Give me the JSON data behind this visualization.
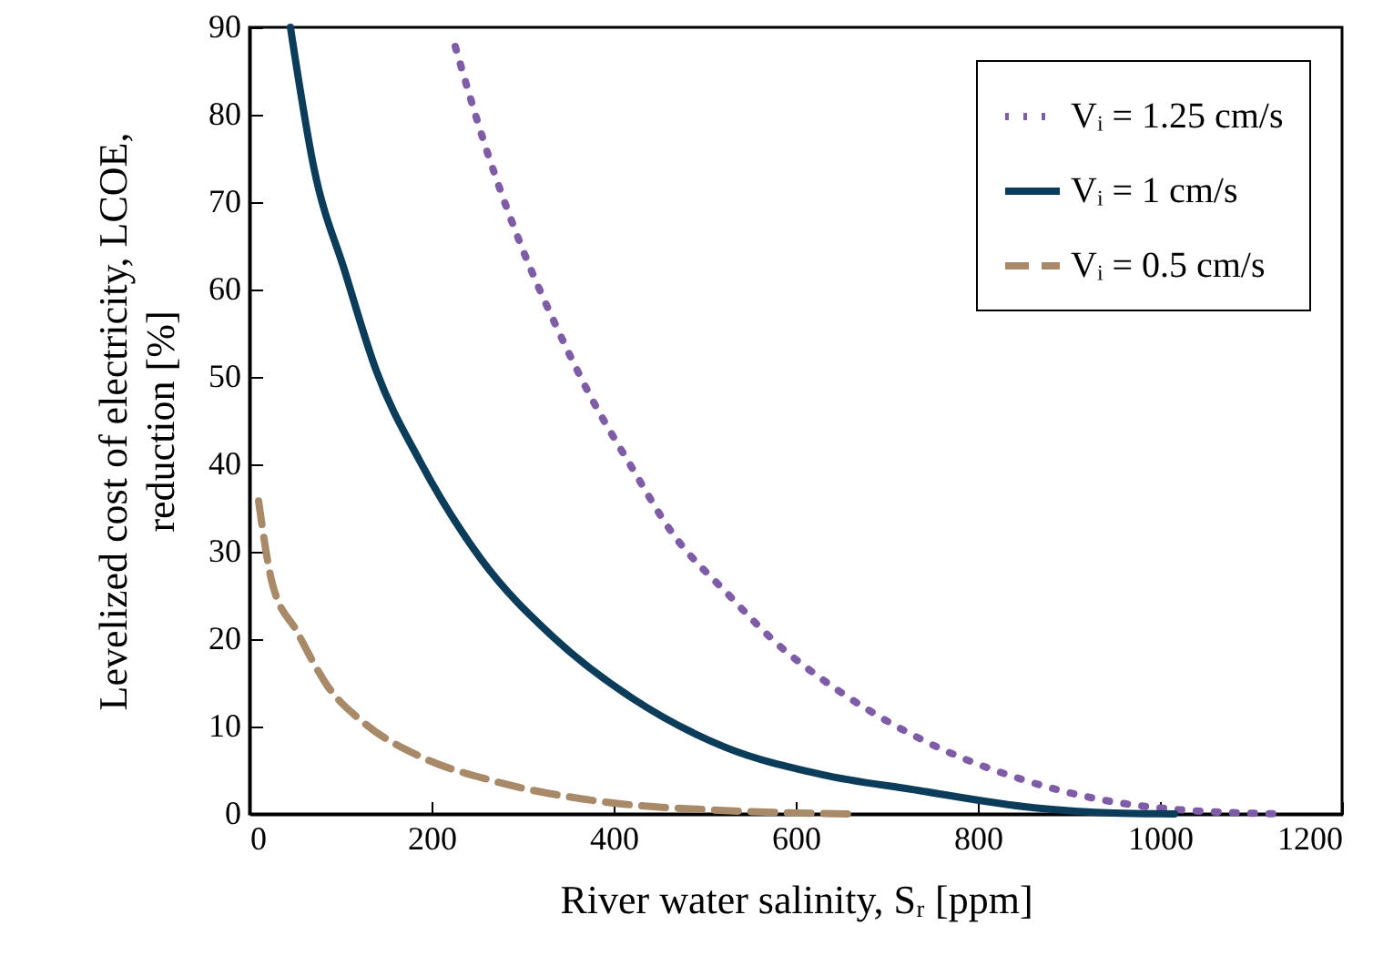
{
  "chart_data": {
    "type": "line",
    "xlabel": "River water salinity, Sᵣ [ppm]",
    "ylabel": "Levelized cost of electricity, LCOE,\nreduction [%]",
    "xlim": [
      0,
      1200
    ],
    "xticks": [
      0,
      200,
      400,
      600,
      800,
      {
        "value": 1000,
        "label": "1000"
      },
      {
        "value": 1200,
        "label": "1200"
      }
    ],
    "ylim": [
      0,
      90
    ],
    "yticks": [
      0,
      10,
      20,
      30,
      40,
      50,
      60,
      70,
      80,
      90
    ],
    "grid": false,
    "legend": "top right",
    "marker": "none",
    "series": [
      {
        "name": "Vᵢ = 1.25 cm/s",
        "color": "#7f5ca8",
        "line_style": "dotted",
        "x": [
          226,
          260,
          300,
          336,
          375,
          419,
          464,
          525,
          588,
          611,
          686,
          765,
          847,
          932,
          1020,
          1137
        ],
        "values": [
          87.8,
          76.1,
          64.6,
          56,
          47.7,
          39.8,
          32.2,
          25.2,
          18.7,
          16.8,
          11.5,
          7.2,
          4,
          1.7,
          0.5,
          0
        ]
      },
      {
        "name": "Vᵢ = 1 cm/s",
        "color": "#0b3d5a",
        "line_style": "solid",
        "x": [
          45,
          71,
          105,
          139,
          187,
          254,
          334,
          421,
          521,
          629,
          728,
          862,
          950,
          1016
        ],
        "values": [
          90,
          73.8,
          62,
          50.8,
          40.4,
          29.2,
          20.2,
          13.2,
          7.7,
          4.5,
          2.8,
          0.7,
          0.1,
          0
        ]
      },
      {
        "name": "Vᵢ = 0.5 cm/s",
        "color": "#a88a68",
        "line_style": "dashed",
        "x": [
          10,
          25,
          52,
          86,
          126,
          187,
          267,
          388,
          521,
          662
        ],
        "values": [
          35.8,
          26.4,
          20.9,
          14.6,
          10.4,
          6.6,
          3.8,
          1.4,
          0.4,
          0
        ]
      }
    ]
  }
}
